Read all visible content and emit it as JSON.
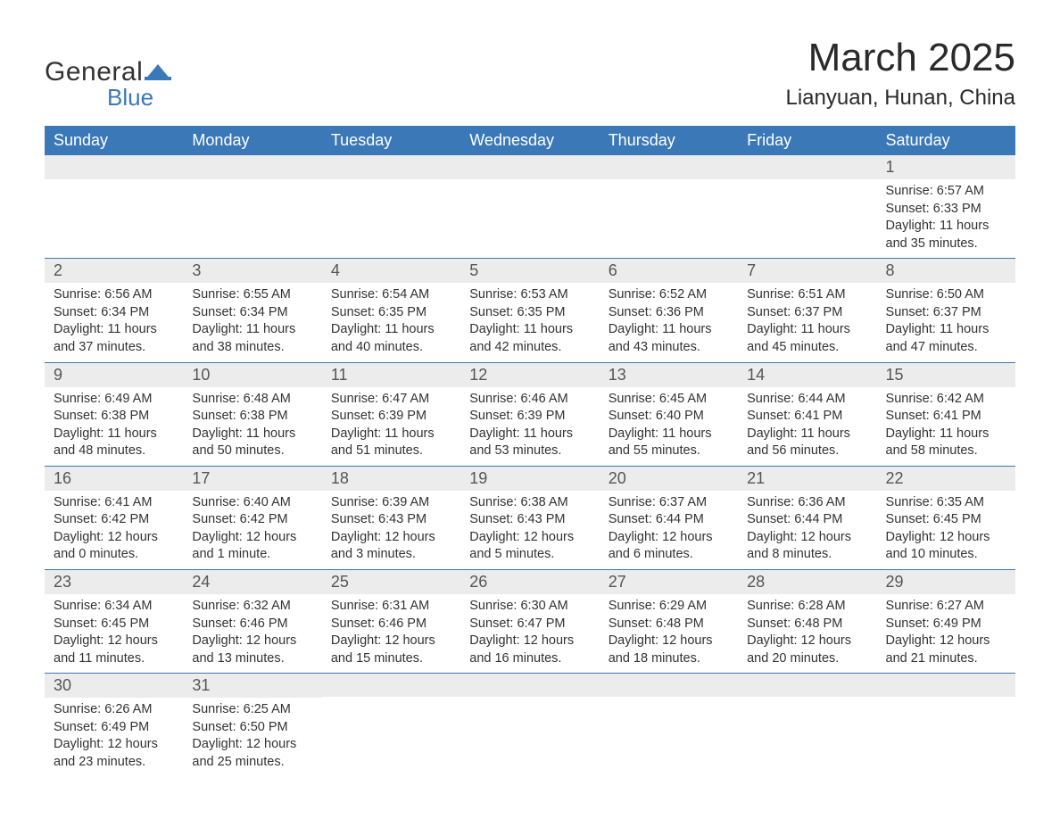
{
  "logo": {
    "text_general": "General",
    "text_blue": "Blue",
    "accent_color": "#3b78b8"
  },
  "title": "March 2025",
  "location": "Lianyuan, Hunan, China",
  "colors": {
    "header_bg": "#3b78b8",
    "header_text": "#ffffff",
    "daynum_bg": "#ececec",
    "daynum_text": "#555555",
    "body_text": "#333333",
    "divider": "#3b78b8",
    "page_bg": "#ffffff"
  },
  "typography": {
    "title_fontsize": 44,
    "location_fontsize": 24,
    "weekday_fontsize": 18,
    "daynum_fontsize": 18,
    "body_fontsize": 14.5,
    "font_family": "Arial"
  },
  "layout": {
    "columns": 7,
    "rows": 6,
    "first_weekday": "Sunday"
  },
  "weekdays": [
    "Sunday",
    "Monday",
    "Tuesday",
    "Wednesday",
    "Thursday",
    "Friday",
    "Saturday"
  ],
  "weeks": [
    [
      null,
      null,
      null,
      null,
      null,
      null,
      {
        "n": "1",
        "sunrise": "Sunrise: 6:57 AM",
        "sunset": "Sunset: 6:33 PM",
        "daylight": "Daylight: 11 hours and 35 minutes."
      }
    ],
    [
      {
        "n": "2",
        "sunrise": "Sunrise: 6:56 AM",
        "sunset": "Sunset: 6:34 PM",
        "daylight": "Daylight: 11 hours and 37 minutes."
      },
      {
        "n": "3",
        "sunrise": "Sunrise: 6:55 AM",
        "sunset": "Sunset: 6:34 PM",
        "daylight": "Daylight: 11 hours and 38 minutes."
      },
      {
        "n": "4",
        "sunrise": "Sunrise: 6:54 AM",
        "sunset": "Sunset: 6:35 PM",
        "daylight": "Daylight: 11 hours and 40 minutes."
      },
      {
        "n": "5",
        "sunrise": "Sunrise: 6:53 AM",
        "sunset": "Sunset: 6:35 PM",
        "daylight": "Daylight: 11 hours and 42 minutes."
      },
      {
        "n": "6",
        "sunrise": "Sunrise: 6:52 AM",
        "sunset": "Sunset: 6:36 PM",
        "daylight": "Daylight: 11 hours and 43 minutes."
      },
      {
        "n": "7",
        "sunrise": "Sunrise: 6:51 AM",
        "sunset": "Sunset: 6:37 PM",
        "daylight": "Daylight: 11 hours and 45 minutes."
      },
      {
        "n": "8",
        "sunrise": "Sunrise: 6:50 AM",
        "sunset": "Sunset: 6:37 PM",
        "daylight": "Daylight: 11 hours and 47 minutes."
      }
    ],
    [
      {
        "n": "9",
        "sunrise": "Sunrise: 6:49 AM",
        "sunset": "Sunset: 6:38 PM",
        "daylight": "Daylight: 11 hours and 48 minutes."
      },
      {
        "n": "10",
        "sunrise": "Sunrise: 6:48 AM",
        "sunset": "Sunset: 6:38 PM",
        "daylight": "Daylight: 11 hours and 50 minutes."
      },
      {
        "n": "11",
        "sunrise": "Sunrise: 6:47 AM",
        "sunset": "Sunset: 6:39 PM",
        "daylight": "Daylight: 11 hours and 51 minutes."
      },
      {
        "n": "12",
        "sunrise": "Sunrise: 6:46 AM",
        "sunset": "Sunset: 6:39 PM",
        "daylight": "Daylight: 11 hours and 53 minutes."
      },
      {
        "n": "13",
        "sunrise": "Sunrise: 6:45 AM",
        "sunset": "Sunset: 6:40 PM",
        "daylight": "Daylight: 11 hours and 55 minutes."
      },
      {
        "n": "14",
        "sunrise": "Sunrise: 6:44 AM",
        "sunset": "Sunset: 6:41 PM",
        "daylight": "Daylight: 11 hours and 56 minutes."
      },
      {
        "n": "15",
        "sunrise": "Sunrise: 6:42 AM",
        "sunset": "Sunset: 6:41 PM",
        "daylight": "Daylight: 11 hours and 58 minutes."
      }
    ],
    [
      {
        "n": "16",
        "sunrise": "Sunrise: 6:41 AM",
        "sunset": "Sunset: 6:42 PM",
        "daylight": "Daylight: 12 hours and 0 minutes."
      },
      {
        "n": "17",
        "sunrise": "Sunrise: 6:40 AM",
        "sunset": "Sunset: 6:42 PM",
        "daylight": "Daylight: 12 hours and 1 minute."
      },
      {
        "n": "18",
        "sunrise": "Sunrise: 6:39 AM",
        "sunset": "Sunset: 6:43 PM",
        "daylight": "Daylight: 12 hours and 3 minutes."
      },
      {
        "n": "19",
        "sunrise": "Sunrise: 6:38 AM",
        "sunset": "Sunset: 6:43 PM",
        "daylight": "Daylight: 12 hours and 5 minutes."
      },
      {
        "n": "20",
        "sunrise": "Sunrise: 6:37 AM",
        "sunset": "Sunset: 6:44 PM",
        "daylight": "Daylight: 12 hours and 6 minutes."
      },
      {
        "n": "21",
        "sunrise": "Sunrise: 6:36 AM",
        "sunset": "Sunset: 6:44 PM",
        "daylight": "Daylight: 12 hours and 8 minutes."
      },
      {
        "n": "22",
        "sunrise": "Sunrise: 6:35 AM",
        "sunset": "Sunset: 6:45 PM",
        "daylight": "Daylight: 12 hours and 10 minutes."
      }
    ],
    [
      {
        "n": "23",
        "sunrise": "Sunrise: 6:34 AM",
        "sunset": "Sunset: 6:45 PM",
        "daylight": "Daylight: 12 hours and 11 minutes."
      },
      {
        "n": "24",
        "sunrise": "Sunrise: 6:32 AM",
        "sunset": "Sunset: 6:46 PM",
        "daylight": "Daylight: 12 hours and 13 minutes."
      },
      {
        "n": "25",
        "sunrise": "Sunrise: 6:31 AM",
        "sunset": "Sunset: 6:46 PM",
        "daylight": "Daylight: 12 hours and 15 minutes."
      },
      {
        "n": "26",
        "sunrise": "Sunrise: 6:30 AM",
        "sunset": "Sunset: 6:47 PM",
        "daylight": "Daylight: 12 hours and 16 minutes."
      },
      {
        "n": "27",
        "sunrise": "Sunrise: 6:29 AM",
        "sunset": "Sunset: 6:48 PM",
        "daylight": "Daylight: 12 hours and 18 minutes."
      },
      {
        "n": "28",
        "sunrise": "Sunrise: 6:28 AM",
        "sunset": "Sunset: 6:48 PM",
        "daylight": "Daylight: 12 hours and 20 minutes."
      },
      {
        "n": "29",
        "sunrise": "Sunrise: 6:27 AM",
        "sunset": "Sunset: 6:49 PM",
        "daylight": "Daylight: 12 hours and 21 minutes."
      }
    ],
    [
      {
        "n": "30",
        "sunrise": "Sunrise: 6:26 AM",
        "sunset": "Sunset: 6:49 PM",
        "daylight": "Daylight: 12 hours and 23 minutes."
      },
      {
        "n": "31",
        "sunrise": "Sunrise: 6:25 AM",
        "sunset": "Sunset: 6:50 PM",
        "daylight": "Daylight: 12 hours and 25 minutes."
      },
      null,
      null,
      null,
      null,
      null
    ]
  ]
}
